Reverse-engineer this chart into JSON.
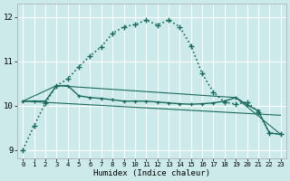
{
  "xlabel": "Humidex (Indice chaleur)",
  "bg_color": "#cceaea",
  "grid_color": "#ffffff",
  "line_color": "#1a6b5e",
  "xlim": [
    -0.5,
    23.5
  ],
  "ylim": [
    8.8,
    12.3
  ],
  "yticks": [
    9,
    10,
    11,
    12
  ],
  "xticks": [
    0,
    1,
    2,
    3,
    4,
    5,
    6,
    7,
    8,
    9,
    10,
    11,
    12,
    13,
    14,
    15,
    16,
    17,
    18,
    19,
    20,
    21,
    22,
    23
  ],
  "curve1_x": [
    0,
    1,
    2,
    3,
    4,
    5,
    6,
    7,
    8,
    9,
    10,
    11,
    12,
    13,
    14,
    15,
    16,
    17,
    18,
    19,
    20,
    21,
    22,
    23
  ],
  "curve1_y": [
    9.0,
    9.55,
    10.05,
    10.45,
    10.6,
    10.88,
    11.12,
    11.33,
    11.63,
    11.78,
    11.83,
    11.93,
    11.82,
    11.93,
    11.78,
    11.35,
    10.72,
    10.3,
    10.08,
    10.03,
    10.08,
    9.85,
    9.38,
    9.35
  ],
  "curve2_x": [
    0,
    1,
    2,
    3,
    4,
    5,
    6,
    7,
    8,
    9,
    10,
    11,
    12,
    13,
    14,
    15,
    16,
    17,
    18,
    19,
    20,
    21,
    22,
    23
  ],
  "curve2_y": [
    10.1,
    10.1,
    10.1,
    10.45,
    10.45,
    10.22,
    10.18,
    10.16,
    10.13,
    10.1,
    10.1,
    10.1,
    10.08,
    10.06,
    10.04,
    10.03,
    10.04,
    10.06,
    10.1,
    10.18,
    10.02,
    9.88,
    9.38,
    9.35
  ],
  "curve3_x": [
    0,
    23
  ],
  "curve3_y": [
    10.1,
    9.78
  ],
  "curve4_x": [
    0,
    3,
    19,
    23
  ],
  "curve4_y": [
    10.1,
    10.45,
    10.18,
    9.35
  ]
}
